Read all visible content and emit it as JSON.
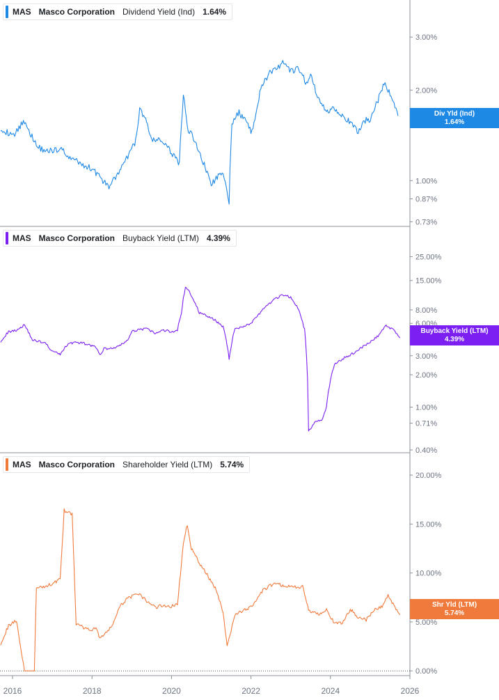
{
  "colors": {
    "blue": "#1e88e5",
    "purple": "#7b1ff2",
    "orange": "#f07a3c",
    "axis_text": "#6b7280",
    "grid": "#d7d9de"
  },
  "x_axis": {
    "ticks": [
      "2016",
      "2018",
      "2020",
      "2022",
      "2024",
      "2026"
    ]
  },
  "panels": [
    {
      "ticker": "MAS",
      "company": "Masco Corporation",
      "metric": "Dividend Yield (Ind)",
      "value": "1.64%",
      "badge_line1": "Div Yld (Ind)",
      "badge_line2": "1.64%",
      "y_ticks": [
        "3.00%",
        "2.00%",
        "1.00%",
        "0.87%",
        "0.73%"
      ]
    },
    {
      "ticker": "MAS",
      "company": "Masco Corporation",
      "metric": "Buyback Yield (LTM)",
      "value": "4.39%",
      "badge_line1": "Buyback Yield (LTM)",
      "badge_line2": "4.39%",
      "y_ticks": [
        "25.00%",
        "15.00%",
        "8.00%",
        "6.00%",
        "3.00%",
        "2.00%",
        "1.00%",
        "0.71%",
        "0.40%"
      ]
    },
    {
      "ticker": "MAS",
      "company": "Masco Corporation",
      "metric": "Shareholder Yield (LTM)",
      "value": "5.74%",
      "badge_line1": "Shr Yld (LTM)",
      "badge_line2": "5.74%",
      "y_ticks": [
        "20.00%",
        "15.00%",
        "10.00%",
        "5.00%",
        "0.00%"
      ]
    }
  ],
  "chart_data": [
    {
      "type": "line",
      "scale": "log",
      "series": [
        {
          "name": "Dividend Yield (Ind)",
          "color": "#1e88e5",
          "points": [
            [
              2015.7,
              1.5
            ],
            [
              2016.0,
              1.4
            ],
            [
              2016.3,
              1.58
            ],
            [
              2016.6,
              1.3
            ],
            [
              2016.9,
              1.25
            ],
            [
              2017.2,
              1.28
            ],
            [
              2017.5,
              1.18
            ],
            [
              2017.8,
              1.12
            ],
            [
              2018.0,
              1.1
            ],
            [
              2018.2,
              1.03
            ],
            [
              2018.4,
              0.95
            ],
            [
              2018.7,
              1.07
            ],
            [
              2018.9,
              1.2
            ],
            [
              2019.1,
              1.35
            ],
            [
              2019.2,
              1.72
            ],
            [
              2019.35,
              1.62
            ],
            [
              2019.5,
              1.35
            ],
            [
              2019.7,
              1.38
            ],
            [
              2019.9,
              1.28
            ],
            [
              2020.1,
              1.2
            ],
            [
              2020.2,
              1.14
            ],
            [
              2020.3,
              1.92
            ],
            [
              2020.4,
              1.5
            ],
            [
              2020.6,
              1.35
            ],
            [
              2020.8,
              1.15
            ],
            [
              2021.0,
              0.97
            ],
            [
              2021.2,
              1.05
            ],
            [
              2021.35,
              1.02
            ],
            [
              2021.45,
              0.85
            ],
            [
              2021.52,
              1.55
            ],
            [
              2021.7,
              1.68
            ],
            [
              2021.85,
              1.6
            ],
            [
              2022.0,
              1.45
            ],
            [
              2022.1,
              1.6
            ],
            [
              2022.25,
              2.05
            ],
            [
              2022.5,
              2.3
            ],
            [
              2022.8,
              2.45
            ],
            [
              2023.0,
              2.3
            ],
            [
              2023.2,
              2.35
            ],
            [
              2023.4,
              2.1
            ],
            [
              2023.5,
              2.25
            ],
            [
              2023.7,
              1.85
            ],
            [
              2023.9,
              1.7
            ],
            [
              2024.1,
              1.75
            ],
            [
              2024.3,
              1.65
            ],
            [
              2024.5,
              1.55
            ],
            [
              2024.7,
              1.45
            ],
            [
              2024.85,
              1.58
            ],
            [
              2025.0,
              1.6
            ],
            [
              2025.2,
              1.85
            ],
            [
              2025.35,
              2.1
            ],
            [
              2025.5,
              1.95
            ],
            [
              2025.7,
              1.64
            ]
          ]
        }
      ],
      "ylim": [
        0.72,
        3.9
      ]
    },
    {
      "type": "line",
      "scale": "log",
      "series": [
        {
          "name": "Buyback Yield (LTM)",
          "color": "#7b1ff2",
          "points": [
            [
              2015.7,
              4.1
            ],
            [
              2015.9,
              5.0
            ],
            [
              2016.1,
              5.2
            ],
            [
              2016.3,
              5.8
            ],
            [
              2016.5,
              4.2
            ],
            [
              2016.8,
              4.0
            ],
            [
              2017.0,
              3.3
            ],
            [
              2017.2,
              3.1
            ],
            [
              2017.4,
              3.9
            ],
            [
              2017.6,
              4.0
            ],
            [
              2017.8,
              3.9
            ],
            [
              2018.0,
              3.7
            ],
            [
              2018.1,
              3.6
            ],
            [
              2018.2,
              3.0
            ],
            [
              2018.3,
              3.5
            ],
            [
              2018.5,
              3.5
            ],
            [
              2018.7,
              3.7
            ],
            [
              2018.9,
              4.2
            ],
            [
              2019.0,
              5.0
            ],
            [
              2019.2,
              5.3
            ],
            [
              2019.4,
              5.3
            ],
            [
              2019.6,
              4.8
            ],
            [
              2019.8,
              5.2
            ],
            [
              2020.0,
              5.0
            ],
            [
              2020.15,
              5.2
            ],
            [
              2020.25,
              7.5
            ],
            [
              2020.35,
              13.0
            ],
            [
              2020.5,
              11.0
            ],
            [
              2020.7,
              7.5
            ],
            [
              2020.9,
              7.0
            ],
            [
              2021.1,
              6.4
            ],
            [
              2021.3,
              5.6
            ],
            [
              2021.45,
              2.8
            ],
            [
              2021.6,
              5.4
            ],
            [
              2021.8,
              5.6
            ],
            [
              2022.0,
              6.0
            ],
            [
              2022.3,
              8.0
            ],
            [
              2022.6,
              10.0
            ],
            [
              2022.8,
              11.0
            ],
            [
              2023.0,
              10.5
            ],
            [
              2023.2,
              8.0
            ],
            [
              2023.35,
              5.2
            ],
            [
              2023.45,
              0.6
            ],
            [
              2023.65,
              0.75
            ],
            [
              2023.8,
              0.77
            ],
            [
              2023.9,
              1.0
            ],
            [
              2024.1,
              2.5
            ],
            [
              2024.3,
              2.8
            ],
            [
              2024.6,
              3.2
            ],
            [
              2024.8,
              3.6
            ],
            [
              2025.0,
              4.0
            ],
            [
              2025.2,
              4.6
            ],
            [
              2025.4,
              5.7
            ],
            [
              2025.6,
              5.2
            ],
            [
              2025.75,
              4.39
            ]
          ]
        }
      ],
      "ylim": [
        0.4,
        45
      ]
    },
    {
      "type": "line",
      "scale": "linear",
      "series": [
        {
          "name": "Shareholder Yield (LTM)",
          "color": "#f07a3c",
          "points": [
            [
              2015.7,
              2.8
            ],
            [
              2015.9,
              4.6
            ],
            [
              2016.1,
              5.2
            ],
            [
              2016.2,
              2.5
            ],
            [
              2016.3,
              0.0
            ],
            [
              2016.55,
              0.0
            ],
            [
              2016.6,
              8.4
            ],
            [
              2016.8,
              8.6
            ],
            [
              2017.0,
              8.9
            ],
            [
              2017.2,
              9.4
            ],
            [
              2017.3,
              16.4
            ],
            [
              2017.5,
              16.0
            ],
            [
              2017.6,
              4.8
            ],
            [
              2017.9,
              4.2
            ],
            [
              2018.1,
              4.3
            ],
            [
              2018.2,
              3.4
            ],
            [
              2018.4,
              4.0
            ],
            [
              2018.5,
              4.6
            ],
            [
              2018.7,
              6.5
            ],
            [
              2018.9,
              7.5
            ],
            [
              2019.2,
              7.8
            ],
            [
              2019.4,
              7.0
            ],
            [
              2019.6,
              6.5
            ],
            [
              2019.8,
              6.7
            ],
            [
              2020.0,
              6.6
            ],
            [
              2020.15,
              6.8
            ],
            [
              2020.3,
              13.0
            ],
            [
              2020.4,
              15.0
            ],
            [
              2020.5,
              12.5
            ],
            [
              2020.7,
              11.0
            ],
            [
              2020.9,
              9.8
            ],
            [
              2021.1,
              8.5
            ],
            [
              2021.3,
              6.0
            ],
            [
              2021.4,
              2.6
            ],
            [
              2021.6,
              5.8
            ],
            [
              2021.9,
              6.3
            ],
            [
              2022.1,
              6.9
            ],
            [
              2022.3,
              8.2
            ],
            [
              2022.6,
              9.0
            ],
            [
              2022.8,
              8.7
            ],
            [
              2023.0,
              8.6
            ],
            [
              2023.3,
              8.6
            ],
            [
              2023.45,
              6.2
            ],
            [
              2023.7,
              5.8
            ],
            [
              2023.9,
              6.3
            ],
            [
              2024.1,
              4.8
            ],
            [
              2024.3,
              4.9
            ],
            [
              2024.5,
              6.3
            ],
            [
              2024.7,
              5.5
            ],
            [
              2024.9,
              5.2
            ],
            [
              2025.1,
              6.2
            ],
            [
              2025.3,
              6.6
            ],
            [
              2025.45,
              7.7
            ],
            [
              2025.6,
              6.7
            ],
            [
              2025.75,
              5.74
            ]
          ]
        }
      ],
      "ylim": [
        -0.2,
        22
      ]
    }
  ]
}
